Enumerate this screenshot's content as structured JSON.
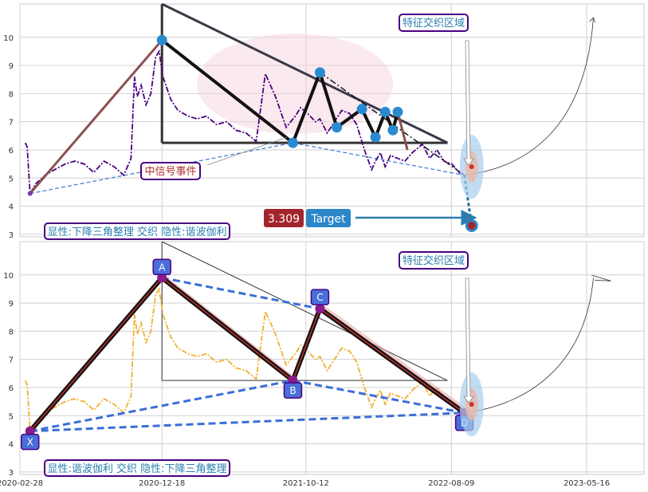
{
  "chart_data": [
    {
      "type": "line",
      "panel": "top",
      "pattern_label": "显性:下降三角整理 交织 隐性:谐波伽利",
      "zone_label": "特征交织区域",
      "event_label": "中信号事件",
      "target_value": "3.309",
      "target_label": "Target",
      "ylim": [
        2.7,
        10.9
      ],
      "yticks": [
        3,
        4,
        5,
        6,
        7,
        8,
        9,
        10
      ],
      "price_color": "#4b0082",
      "price_series": {
        "x": [
          "2020-03-10",
          "2020-03-14",
          "2020-03-20",
          "2020-04-01",
          "2020-04-20",
          "2020-05-10",
          "2020-06-01",
          "2020-06-20",
          "2020-07-10",
          "2020-07-30",
          "2020-08-20",
          "2020-09-10",
          "2020-09-30",
          "2020-10-15",
          "2020-10-22",
          "2020-10-28",
          "2020-11-05",
          "2020-11-15",
          "2020-11-25",
          "2020-12-05",
          "2020-12-12",
          "2020-12-20",
          "2021-01-05",
          "2021-01-20",
          "2021-02-10",
          "2021-03-01",
          "2021-03-20",
          "2021-04-10",
          "2021-05-01",
          "2021-05-20",
          "2021-06-10",
          "2021-07-01",
          "2021-07-20",
          "2021-08-10",
          "2021-09-01",
          "2021-09-20",
          "2021-10-01",
          "2021-10-15",
          "2021-11-01",
          "2021-11-10",
          "2021-11-25",
          "2021-12-10",
          "2021-12-25",
          "2022-01-10",
          "2022-01-25",
          "2022-02-10",
          "2022-02-25",
          "2022-03-05",
          "2022-03-15",
          "2022-03-25",
          "2022-04-05",
          "2022-04-20",
          "2022-05-05",
          "2022-05-20",
          "2022-06-10",
          "2022-06-25",
          "2022-07-10",
          "2022-07-25",
          "2022-08-10",
          "2022-08-25",
          "2022-09-05"
        ],
        "y": [
          6.25,
          6.1,
          4.45,
          4.8,
          5.1,
          5.3,
          5.5,
          5.6,
          5.5,
          5.2,
          5.6,
          5.4,
          5.1,
          5.7,
          8.6,
          7.9,
          8.3,
          7.6,
          8.0,
          9.3,
          9.5,
          8.6,
          7.8,
          7.4,
          7.2,
          7.1,
          7.2,
          6.9,
          7.0,
          6.7,
          6.6,
          6.3,
          8.7,
          7.9,
          6.8,
          7.2,
          7.5,
          7.3,
          7.0,
          7.1,
          6.6,
          7.0,
          7.4,
          7.3,
          6.9,
          6.0,
          5.3,
          5.6,
          5.9,
          5.4,
          5.8,
          5.7,
          5.6,
          5.9,
          6.2,
          5.7,
          6.0,
          5.6,
          5.5,
          5.2,
          5.1
        ]
      },
      "points": [
        {
          "x": "2020-12-18",
          "y": 9.9
        },
        {
          "x": "2021-09-15",
          "y": 6.25
        },
        {
          "x": "2021-11-10",
          "y": 8.75
        },
        {
          "x": "2021-12-15",
          "y": 6.8
        },
        {
          "x": "2022-02-05",
          "y": 7.45
        },
        {
          "x": "2022-03-05",
          "y": 6.45
        },
        {
          "x": "2022-03-25",
          "y": 7.35
        },
        {
          "x": "2022-04-10",
          "y": 6.7
        },
        {
          "x": "2022-04-20",
          "y": 7.35
        }
      ],
      "target_point": {
        "x": "2022-09-20",
        "y": 3.309
      }
    },
    {
      "type": "line",
      "panel": "bottom",
      "pattern_label": "显性:谐波伽利 交织 隐性:下降三角整理",
      "zone_label": "特征交织区域",
      "ylim": [
        2.7,
        10.9
      ],
      "yticks": [
        3,
        4,
        5,
        6,
        7,
        8,
        9,
        10
      ],
      "xticks": [
        "2020-02-28",
        "2020-12-18",
        "2021-10-12",
        "2022-08-09",
        "2023-05-16"
      ],
      "price_color": "#f0b030",
      "pivots": [
        {
          "label": "X",
          "x": "2020-03-20",
          "y": 4.45
        },
        {
          "label": "A",
          "x": "2020-12-18",
          "y": 9.9
        },
        {
          "label": "B",
          "x": "2021-09-15",
          "y": 6.25
        },
        {
          "label": "C",
          "x": "2021-11-10",
          "y": 8.8
        },
        {
          "label": "D",
          "x": "2022-09-05",
          "y": 5.1
        }
      ]
    }
  ]
}
